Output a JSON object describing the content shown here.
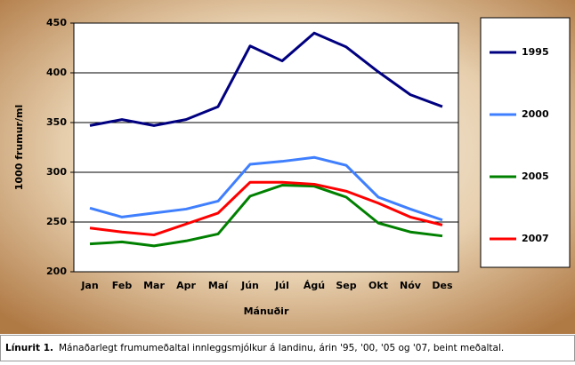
{
  "chart_data": {
    "type": "line",
    "y_label": "1000 frumur/ml",
    "x_label": "Mánuðir",
    "categories": [
      "Jan",
      "Feb",
      "Mar",
      "Apr",
      "Maí",
      "Jún",
      "Júl",
      "Ágú",
      "Sep",
      "Okt",
      "Nóv",
      "Des"
    ],
    "series": [
      {
        "name": "1995",
        "color": "#000080",
        "values": [
          347,
          353,
          347,
          353,
          366,
          427,
          412,
          440,
          426,
          401,
          378,
          366
        ]
      },
      {
        "name": "2000",
        "color": "#3f7fff",
        "values": [
          264,
          255,
          259,
          263,
          271,
          308,
          311,
          315,
          307,
          275,
          263,
          252
        ]
      },
      {
        "name": "2005",
        "color": "#008000",
        "values": [
          228,
          230,
          226,
          231,
          238,
          276,
          287,
          286,
          275,
          249,
          240,
          236
        ]
      },
      {
        "name": "2007",
        "color": "#ff0000",
        "values": [
          244,
          240,
          237,
          248,
          259,
          290,
          290,
          288,
          281,
          269,
          255,
          247
        ]
      }
    ],
    "ylim": [
      200,
      450
    ],
    "yticks": [
      200,
      250,
      300,
      350,
      400,
      450
    ],
    "grid": true,
    "legend": "right"
  },
  "caption": {
    "label": "Línurit 1.",
    "text": "Mánaðarlegt frumumeðaltal innleggsmjólkur á landinu, árin '95, '00, '05 og '07, beint  meðaltal."
  }
}
